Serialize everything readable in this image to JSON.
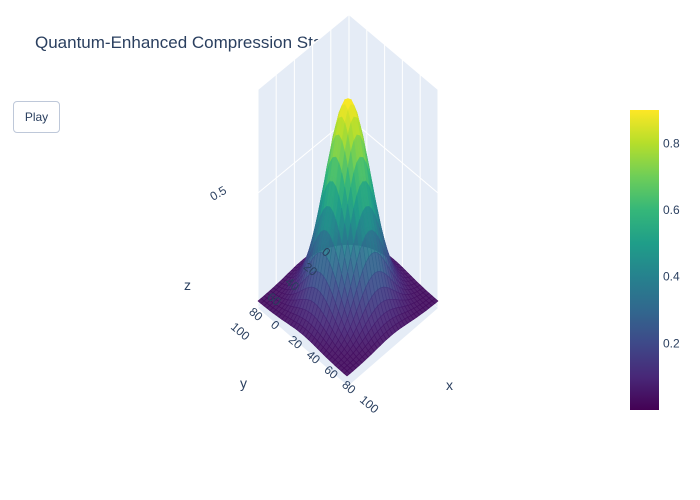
{
  "title": "Quantum-Enhanced Compression States",
  "controls": {
    "play_label": "Play"
  },
  "chart_data": {
    "type": "surface",
    "title": "Quantum-Enhanced Compression States",
    "colorscale": "Viridis",
    "colorscale_stops": [
      "#440154",
      "#482878",
      "#3e4989",
      "#31688e",
      "#26828e",
      "#1f9e89",
      "#35b779",
      "#6ece58",
      "#b5de2b",
      "#fde725"
    ],
    "x": {
      "label": "x",
      "range": [
        0,
        100
      ],
      "ticks": [
        "0",
        "20",
        "40",
        "60",
        "80",
        "100"
      ]
    },
    "y": {
      "label": "y",
      "range": [
        0,
        100
      ],
      "ticks": [
        "0",
        "20",
        "40",
        "60",
        "80",
        "100"
      ]
    },
    "z": {
      "label": "z",
      "range": [
        0,
        0.9
      ],
      "ticks": [
        "0.5"
      ]
    },
    "colorbar": {
      "min": 0,
      "max": 0.9,
      "ticks": [
        "0.2",
        "0.4",
        "0.6",
        "0.8"
      ],
      "tick_values": [
        0.2,
        0.4,
        0.6,
        0.8
      ]
    },
    "surface": {
      "description_function": "gaussian peak",
      "peak_z": 0.88,
      "peak_x": 50,
      "peak_y": 50,
      "sigma": 18
    },
    "scene": {
      "background": "#e5ecf6",
      "grid": true
    }
  }
}
